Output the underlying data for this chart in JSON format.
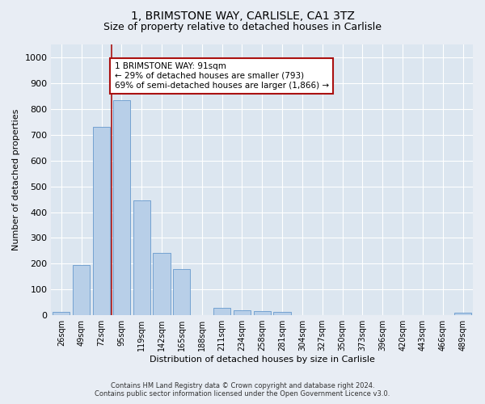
{
  "title": "1, BRIMSTONE WAY, CARLISLE, CA1 3TZ",
  "subtitle": "Size of property relative to detached houses in Carlisle",
  "xlabel": "Distribution of detached houses by size in Carlisle",
  "ylabel": "Number of detached properties",
  "footer_line1": "Contains HM Land Registry data © Crown copyright and database right 2024.",
  "footer_line2": "Contains public sector information licensed under the Open Government Licence v3.0.",
  "bar_labels": [
    "26sqm",
    "49sqm",
    "72sqm",
    "95sqm",
    "119sqm",
    "142sqm",
    "165sqm",
    "188sqm",
    "211sqm",
    "234sqm",
    "258sqm",
    "281sqm",
    "304sqm",
    "327sqm",
    "350sqm",
    "373sqm",
    "396sqm",
    "420sqm",
    "443sqm",
    "466sqm",
    "489sqm"
  ],
  "bar_values": [
    12,
    195,
    730,
    835,
    447,
    242,
    178,
    0,
    30,
    20,
    15,
    12,
    0,
    0,
    0,
    0,
    0,
    0,
    0,
    0,
    10
  ],
  "bar_color": "#b8cfe8",
  "bar_edge_color": "#6699cc",
  "ylim": [
    0,
    1050
  ],
  "yticks": [
    0,
    100,
    200,
    300,
    400,
    500,
    600,
    700,
    800,
    900,
    1000
  ],
  "vline_x": 2.5,
  "vline_color": "#aa1111",
  "annotation_text": "1 BRIMSTONE WAY: 91sqm\n← 29% of detached houses are smaller (793)\n69% of semi-detached houses are larger (1,866) →",
  "annotation_box_color": "#ffffff",
  "annotation_box_edge": "#aa1111",
  "bg_color": "#e8edf4",
  "plot_bg_color": "#dce6f0",
  "grid_color": "#ffffff",
  "title_fontsize": 10,
  "subtitle_fontsize": 9,
  "ylabel_fontsize": 8,
  "xlabel_fontsize": 8,
  "tick_fontsize": 8,
  "xtick_fontsize": 7,
  "footer_fontsize": 6,
  "ann_fontsize": 7.5
}
